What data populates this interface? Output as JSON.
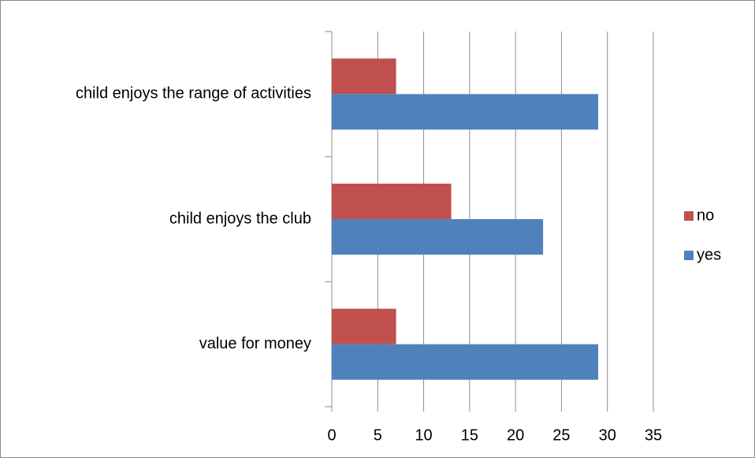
{
  "chart_data": {
    "type": "bar",
    "orientation": "horizontal",
    "categories": [
      "child enjoys the range of activities",
      "child enjoys the club",
      "value for money"
    ],
    "series": [
      {
        "name": "no",
        "color": "#c0504d",
        "values": [
          7,
          13,
          7
        ]
      },
      {
        "name": "yes",
        "color": "#4f81bd",
        "values": [
          29,
          23,
          29
        ]
      }
    ],
    "xlim": [
      0,
      35
    ],
    "xticks": [
      0,
      5,
      10,
      15,
      20,
      25,
      30,
      35
    ],
    "grid": true,
    "legend": "right"
  }
}
